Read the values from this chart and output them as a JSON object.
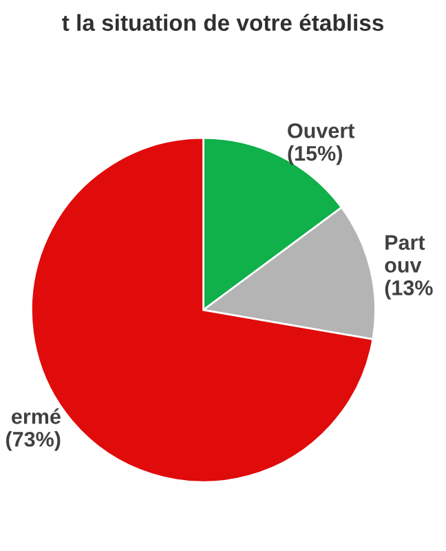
{
  "chart_data": {
    "type": "pie",
    "title": "t la situation de votre établiss",
    "categories": [
      "Ouvert\n(15%)",
      "Part\nouv\n(13%",
      "ermé\n(73%)"
    ],
    "values": [
      15,
      13,
      73
    ],
    "colors": [
      "#10b04a",
      "#b4b4b4",
      "#e00b0b"
    ]
  }
}
